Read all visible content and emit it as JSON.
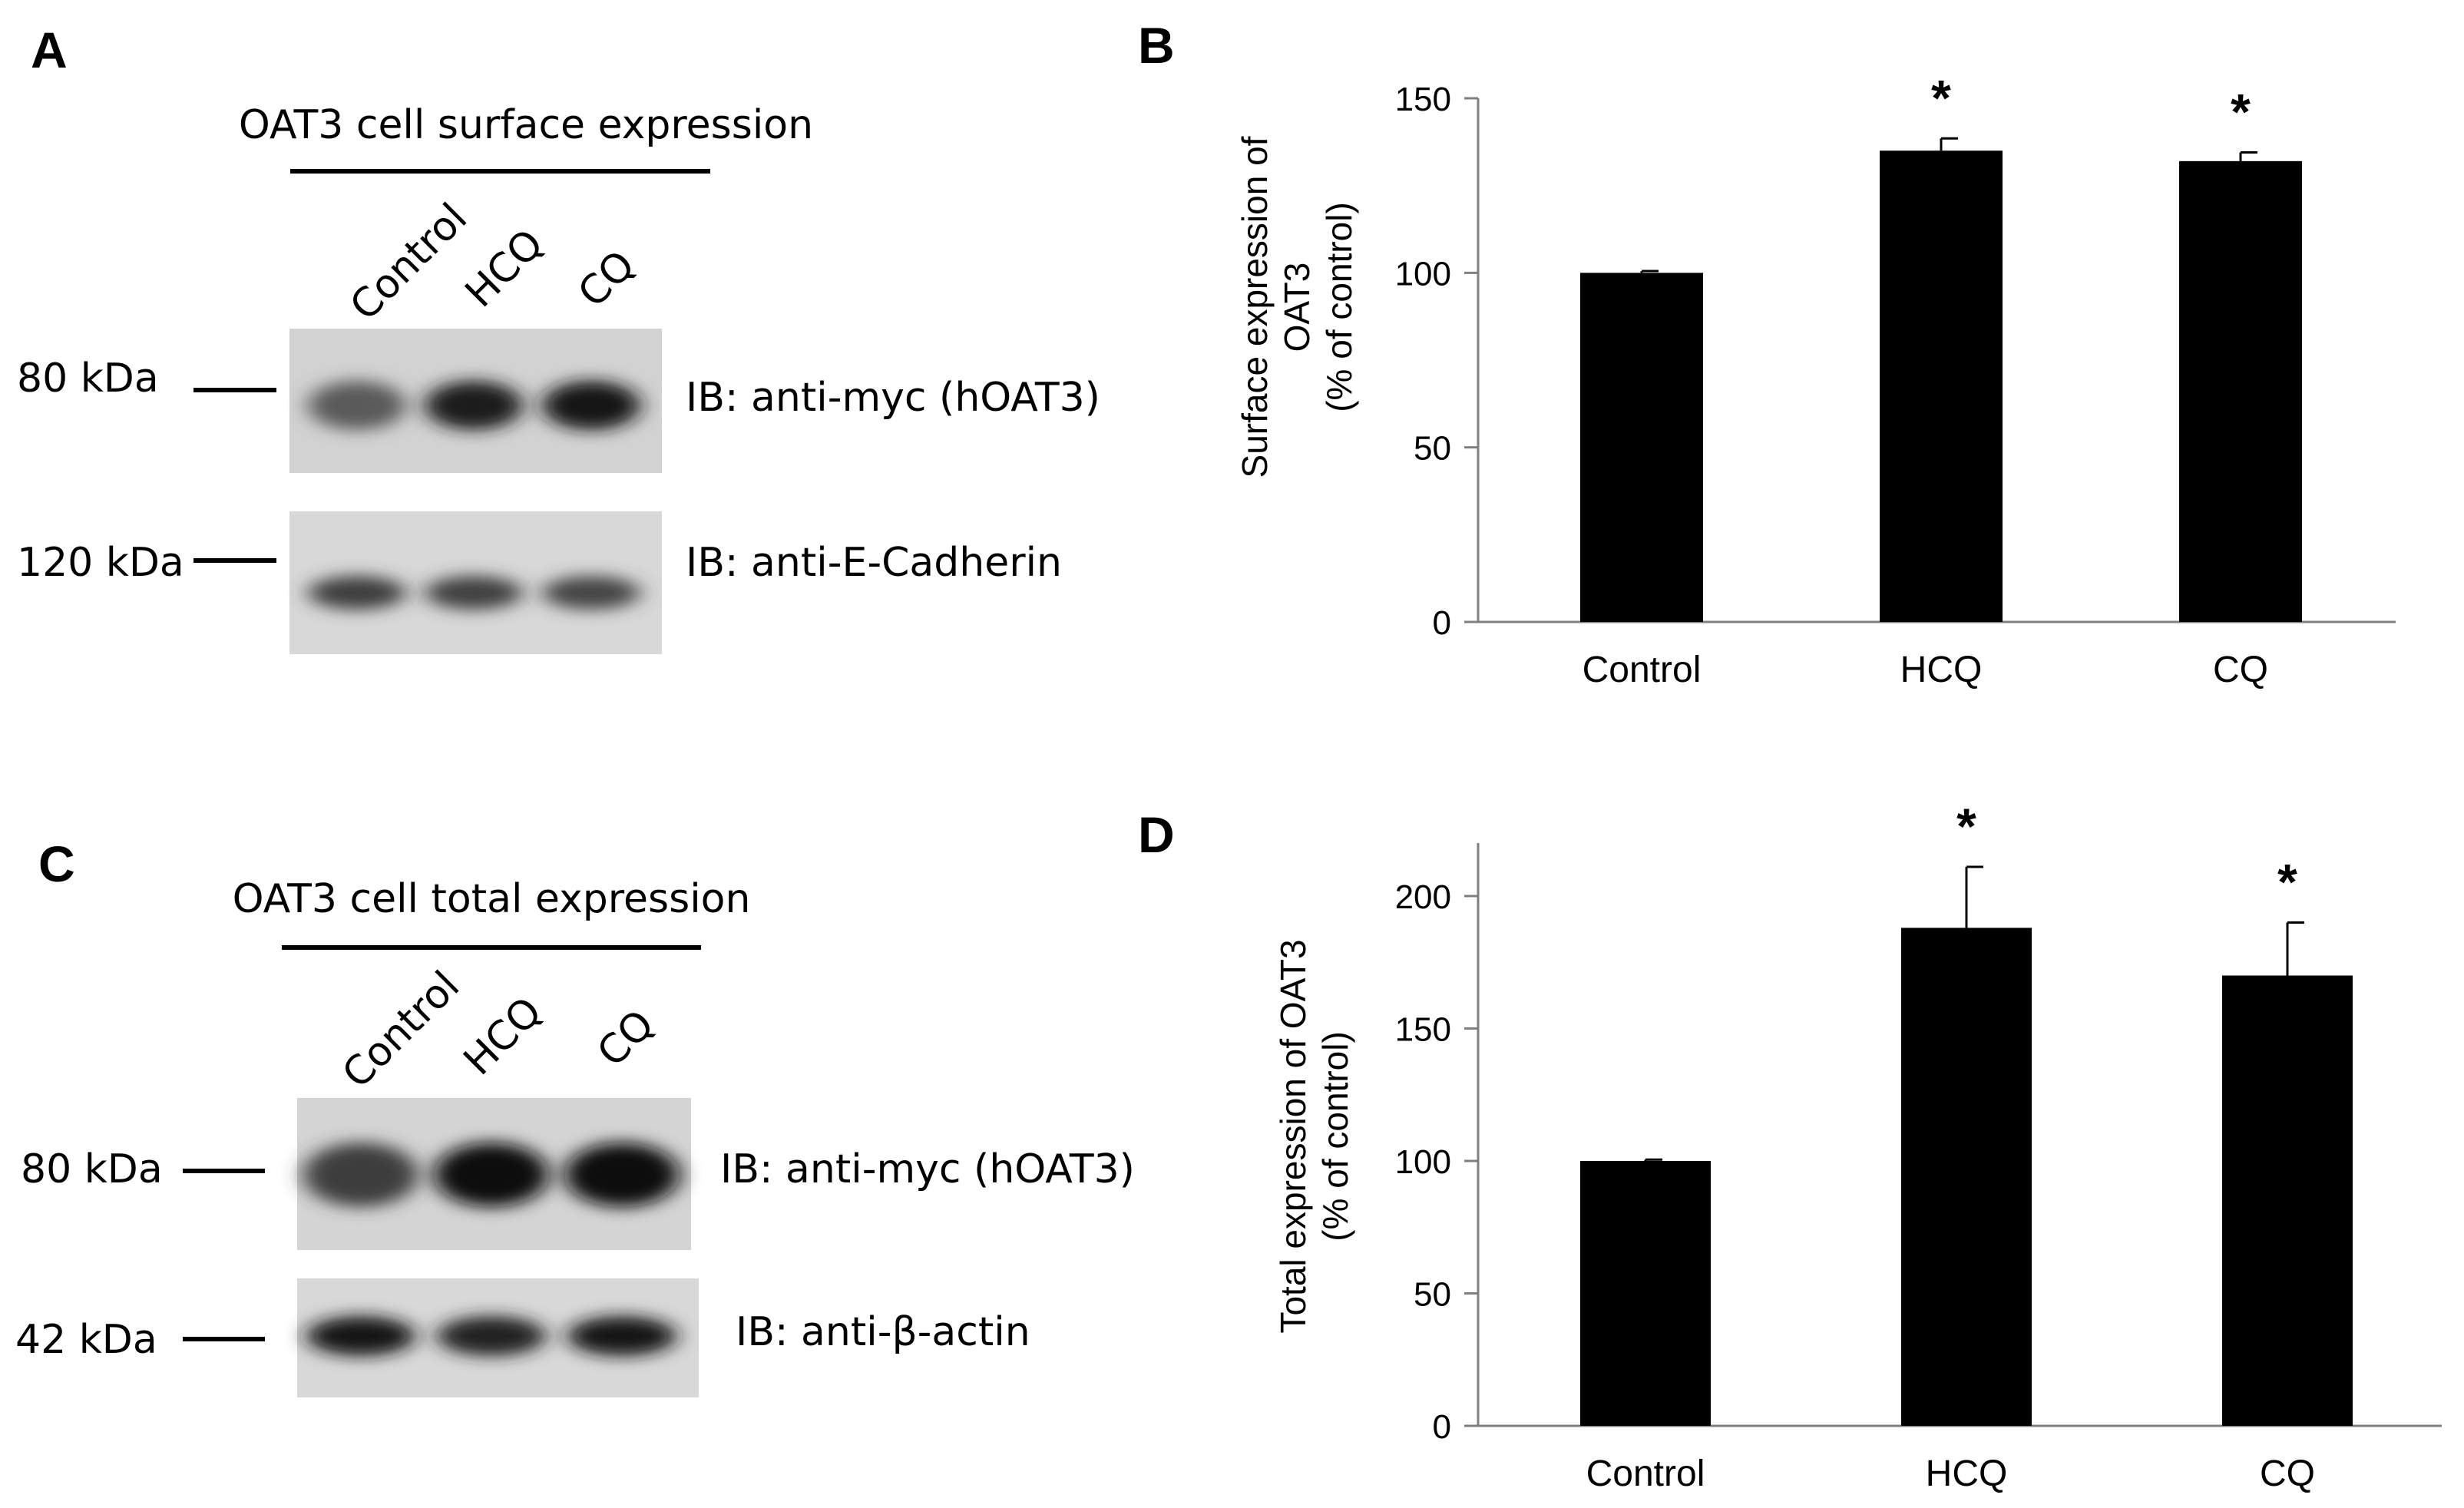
{
  "panels": {
    "A": {
      "letter": "A",
      "title": "OAT3 cell surface expression",
      "lanes": [
        "Control",
        "HCQ",
        "CQ"
      ],
      "blots": [
        {
          "marker": "80 kDa",
          "label": "IB: anti-myc (hOAT3)",
          "band_intensity": [
            0.55,
            0.85,
            0.9
          ]
        },
        {
          "marker": "120 kDa",
          "label": "IB: anti-E-Cadherin",
          "band_intensity": [
            0.7,
            0.68,
            0.66
          ]
        }
      ]
    },
    "C": {
      "letter": "C",
      "title": "OAT3 cell total expression",
      "lanes": [
        "Control",
        "HCQ",
        "CQ"
      ],
      "blots": [
        {
          "marker": "80 kDa",
          "label": "IB: anti-myc (hOAT3)",
          "band_intensity": [
            0.7,
            0.92,
            0.95
          ]
        },
        {
          "marker": "42 kDa",
          "label": "IB: anti-β-actin",
          "band_intensity": [
            0.88,
            0.84,
            0.9
          ]
        }
      ]
    },
    "B": {
      "letter": "B"
    },
    "D": {
      "letter": "D"
    }
  },
  "chart_data": [
    {
      "panel": "B",
      "type": "bar",
      "categories": [
        "Control",
        "HCQ",
        "CQ"
      ],
      "values": [
        100,
        135,
        132
      ],
      "errors": [
        0.5,
        3.5,
        2.5
      ],
      "significance": [
        "",
        "*",
        "*"
      ],
      "ylabel_lines": [
        "Surface expression of",
        "OAT3",
        "(% of control)"
      ],
      "yticks": [
        0,
        50,
        100,
        150
      ],
      "ylim": [
        0,
        150
      ],
      "bar_color": "#000000",
      "grid": false
    },
    {
      "panel": "D",
      "type": "bar",
      "categories": [
        "Control",
        "HCQ",
        "CQ"
      ],
      "values": [
        100,
        188,
        170
      ],
      "errors": [
        0.5,
        23,
        20
      ],
      "significance": [
        "",
        "*",
        "*"
      ],
      "ylabel_lines": [
        "Total expression of OAT3",
        "(% of control)"
      ],
      "yticks": [
        0,
        50,
        100,
        150,
        200
      ],
      "ylim": [
        0,
        220
      ],
      "bar_color": "#000000",
      "grid": false
    }
  ]
}
